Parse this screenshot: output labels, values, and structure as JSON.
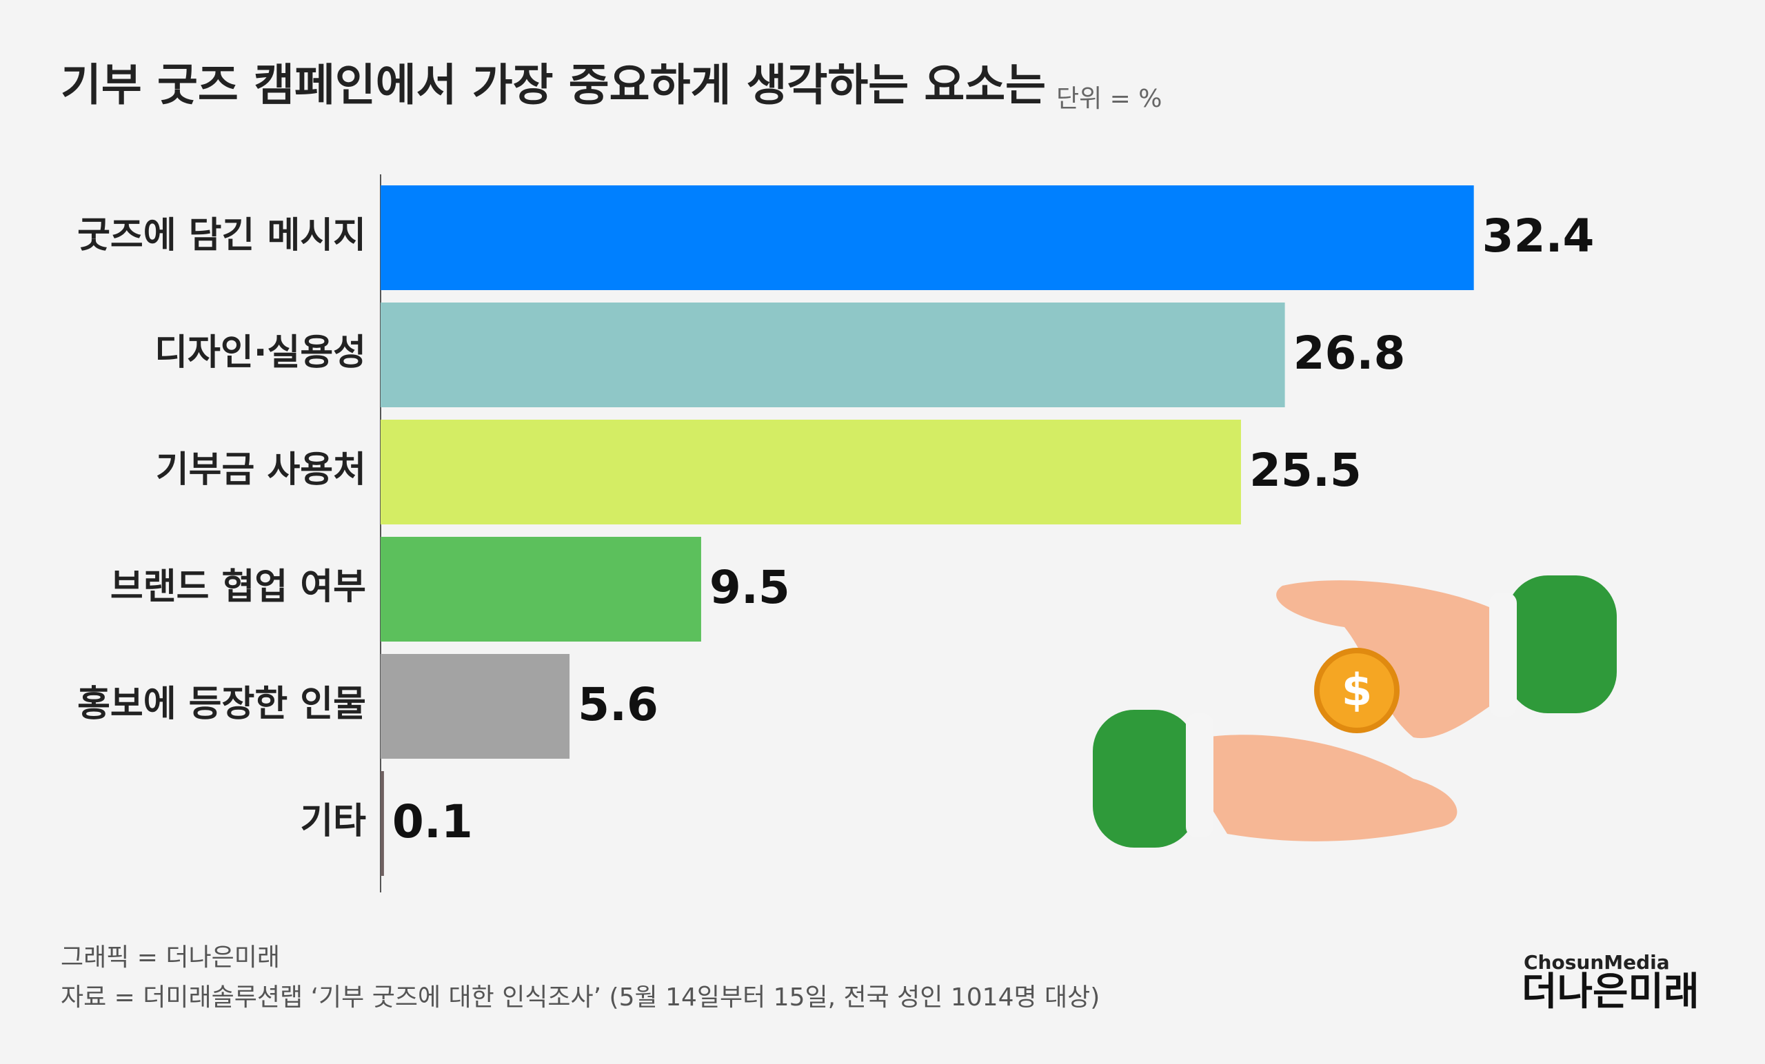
{
  "chart_data": {
    "type": "hbar",
    "title": "기부 굿즈 캠페인에서 가장 중요하게 생각하는 요소는",
    "unit": "단위 = %",
    "categories": [
      "굿즈에 담긴 메시지",
      "디자인·실용성",
      "기부금 사용처",
      "브랜드 협업 여부",
      "홍보에 등장한 인물",
      "기타"
    ],
    "values": [
      32.4,
      26.8,
      25.5,
      9.5,
      5.6,
      0.1
    ],
    "colors": [
      "#0080ff",
      "#8fc7c7",
      "#d4ed64",
      "#5cc05c",
      "#a3a3a3",
      "#6e6060"
    ],
    "xlim": [
      0,
      40
    ],
    "credit": "그래픽 = 더나은미래",
    "source": "자료 = 더미래솔루션랩 ‘기부 굿즈에 대한 인식조사’ (5월 14일부터 15일, 전국 성인 1014명 대상)",
    "logo": {
      "brand": "ChosunMedia",
      "name": "더나은미래"
    }
  }
}
